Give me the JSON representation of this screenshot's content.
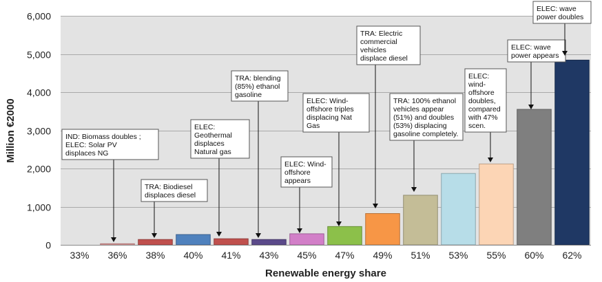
{
  "chart_data": {
    "type": "bar",
    "title": "",
    "xlabel": "Renewable energy share",
    "ylabel": "Million €2000",
    "ylim": [
      0,
      6000
    ],
    "yticks": [
      "0",
      "1,000",
      "2,000",
      "3,000",
      "4,000",
      "5,000",
      "6,000"
    ],
    "ytick_values": [
      0,
      1000,
      2000,
      3000,
      4000,
      5000,
      6000
    ],
    "grid": true,
    "legend": "none",
    "categories": [
      "33%",
      "36%",
      "38%",
      "40%",
      "41%",
      "43%",
      "45%",
      "47%",
      "49%",
      "51%",
      "53%",
      "55%",
      "60%",
      "62%"
    ],
    "values": [
      0,
      30,
      140,
      270,
      160,
      140,
      290,
      480,
      820,
      1300,
      1870,
      2120,
      3550,
      4840
    ],
    "colors": [
      "#c9c9c9",
      "#e8a0a0",
      "#c0504d",
      "#4f81bd",
      "#c0504d",
      "#5b4a8a",
      "#d27fc8",
      "#8cc04a",
      "#f79646",
      "#c4bd97",
      "#b7dde8",
      "#fcd5b5",
      "#7f7f7f",
      "#1f3864"
    ],
    "annotations": [
      {
        "category": "36%",
        "lines": [
          "IND: Biomass doubles ;",
          "ELEC: Solar PV",
          "displaces NG"
        ]
      },
      {
        "category": "38%",
        "lines": [
          "TRA: Biodiesel",
          "displaces diesel"
        ]
      },
      {
        "category": "41%",
        "lines": [
          "ELEC:",
          "Geothermal",
          "displaces",
          "Natural gas"
        ]
      },
      {
        "category": "43%",
        "lines": [
          "TRA: blending",
          "(85%) ethanol",
          "gasoline"
        ]
      },
      {
        "category": "45%",
        "lines": [
          "ELEC: Wind-",
          "offshore",
          "appears"
        ]
      },
      {
        "category": "47%",
        "lines": [
          "ELEC: Wind-",
          "offshore triples",
          "displacing Nat",
          "Gas"
        ]
      },
      {
        "category": "49%",
        "lines": [
          "TRA: Electric",
          "commercial",
          "vehicles",
          "displace diesel"
        ]
      },
      {
        "category": "51%",
        "lines": [
          "TRA: 100% ethanol",
          "vehicles appear",
          "(51%) and doubles",
          "(53%) displacing",
          "gasoline completely."
        ]
      },
      {
        "category": "55%",
        "lines": [
          "ELEC:",
          "wind-",
          "offshore",
          "doubles,",
          "compared",
          "with 47%",
          "scen."
        ]
      },
      {
        "category": "60%",
        "lines": [
          "ELEC: wave",
          "power appears"
        ]
      },
      {
        "category": "62%",
        "lines": [
          "ELEC: wave",
          "power doubles"
        ]
      }
    ]
  }
}
